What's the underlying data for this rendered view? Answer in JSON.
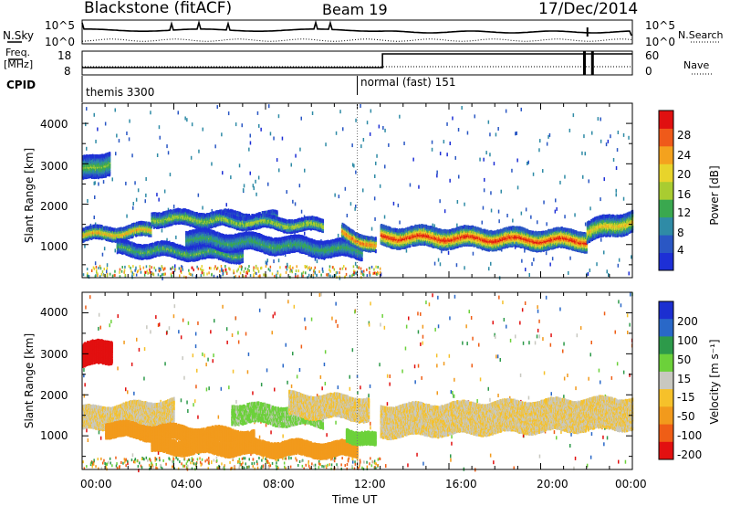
{
  "header": {
    "radar": "Blackstone (fitACF)",
    "beam": "Beam 19",
    "date": "17/Dec/2014"
  },
  "summary": {
    "nsky_label": "N.Sky",
    "freq_label": "Freq.",
    "freq_unit": "[MHz]",
    "cpid_label": "CPID",
    "nsearch_label": "N.Search",
    "nave_label": "Nave",
    "left_ticks_top": [
      "10^5",
      "10^0"
    ],
    "right_ticks_top": [
      "10^5",
      "10^0"
    ],
    "left_ticks_freq": [
      "18",
      "8"
    ],
    "right_ticks_nave": [
      "60",
      "0"
    ],
    "cpid_entries": [
      {
        "start_hour": 0.0,
        "label": "themis 3300"
      },
      {
        "start_hour": 12.0,
        "label": "normal (fast) 151"
      }
    ]
  },
  "x_axis": {
    "title": "Time UT",
    "ticks": [
      "00:00",
      "04:00",
      "08:00",
      "12:00",
      "16:00",
      "20:00",
      "00:00"
    ]
  },
  "y_axis": {
    "title": "Slant Range [km]",
    "ticks": [
      "1000",
      "2000",
      "3000",
      "4000"
    ]
  },
  "power_colorbar": {
    "title": "Power [dB]",
    "labels": [
      "4",
      "8",
      "12",
      "16",
      "20",
      "24",
      "28"
    ]
  },
  "velocity_colorbar": {
    "title": "Velocity [m s⁻¹]",
    "labels": [
      "200",
      "100",
      "50",
      "15",
      "-15",
      "-50",
      "-100",
      "-200"
    ]
  },
  "chart_data": [
    {
      "type": "heatmap",
      "title": "",
      "xlabel": "Time UT",
      "ylabel": "Slant Range [km]",
      "xlim": [
        0,
        24
      ],
      "ylim": [
        180,
        4500
      ],
      "colorbar_label": "Power [dB]",
      "colorbar_ticks": [
        4,
        8,
        12,
        16,
        20,
        24,
        28
      ],
      "colors": [
        "#1d2fd6",
        "#2a57c4",
        "#2f8ba6",
        "#3aa84f",
        "#a9cc31",
        "#e8d42b",
        "#f4a21e",
        "#ef5a1a",
        "#e01010"
      ],
      "bands": [
        {
          "start_hour": 0.0,
          "end_hour": 3.0,
          "center_km": [
            1280,
            1400
          ],
          "width_km": 260,
          "peak_db": 22
        },
        {
          "start_hour": 3.0,
          "end_hour": 8.5,
          "center_km": [
            1700,
            1650
          ],
          "width_km": 300,
          "peak_db": 16
        },
        {
          "start_hour": 6.0,
          "end_hour": 10.5,
          "center_km": [
            1650,
            1500
          ],
          "width_km": 250,
          "peak_db": 17
        },
        {
          "start_hour": 1.5,
          "end_hour": 7.0,
          "center_km": [
            950,
            800
          ],
          "width_km": 280,
          "peak_db": 13
        },
        {
          "start_hour": 4.5,
          "end_hour": 12.2,
          "center_km": [
            1200,
            900
          ],
          "width_km": 350,
          "peak_db": 12
        },
        {
          "start_hour": 11.3,
          "end_hour": 12.8,
          "center_km": [
            1350,
            1000
          ],
          "width_km": 300,
          "peak_db": 26
        },
        {
          "start_hour": 13.0,
          "end_hour": 22.0,
          "center_km": [
            1250,
            1150
          ],
          "width_km": 420,
          "peak_db": 28
        },
        {
          "start_hour": 22.0,
          "end_hour": 24.0,
          "center_km": [
            1350,
            1650
          ],
          "width_km": 450,
          "peak_db": 20
        },
        {
          "start_hour": 0.0,
          "end_hour": 1.2,
          "center_km": [
            2900,
            3100
          ],
          "width_km": 500,
          "peak_db": 14
        }
      ]
    },
    {
      "type": "heatmap",
      "title": "",
      "xlabel": "Time UT",
      "ylabel": "Slant Range [km]",
      "xlim": [
        0,
        24
      ],
      "ylim": [
        180,
        4500
      ],
      "colorbar_label": "Velocity [m s⁻¹]",
      "colorbar_ticks": [
        200,
        100,
        50,
        15,
        -15,
        -50,
        -100,
        -200
      ],
      "colors": [
        "#1c2fd0",
        "#2968c8",
        "#2d9a4a",
        "#6cd13a",
        "#c8c8c0",
        "#f6c12a",
        "#f29a1c",
        "#ef5e16",
        "#e21010"
      ],
      "bands": [
        {
          "start_hour": 0.0,
          "end_hour": 1.3,
          "center_km": [
            3000,
            3100
          ],
          "width_km": 500,
          "velocity": -180
        },
        {
          "start_hour": 0.0,
          "end_hour": 4.0,
          "center_km": [
            1450,
            1650
          ],
          "width_km": 500,
          "velocity": 0
        },
        {
          "start_hour": 1.0,
          "end_hour": 7.5,
          "center_km": [
            1200,
            1000
          ],
          "width_km": 300,
          "velocity": -60
        },
        {
          "start_hour": 6.5,
          "end_hour": 10.5,
          "center_km": [
            1600,
            1500
          ],
          "width_km": 400,
          "velocity": 40
        },
        {
          "start_hour": 3.0,
          "end_hour": 12.0,
          "center_km": [
            800,
            700
          ],
          "width_km": 300,
          "velocity": -60
        },
        {
          "start_hour": 9.0,
          "end_hour": 12.5,
          "center_km": [
            1800,
            1700
          ],
          "width_km": 500,
          "velocity": 0
        },
        {
          "start_hour": 11.5,
          "end_hour": 12.8,
          "center_km": [
            1100,
            900
          ],
          "width_km": 250,
          "velocity": 60
        },
        {
          "start_hour": 13.0,
          "end_hour": 24.0,
          "center_km": [
            1400,
            1600
          ],
          "width_km": 700,
          "velocity": 0
        }
      ]
    }
  ]
}
